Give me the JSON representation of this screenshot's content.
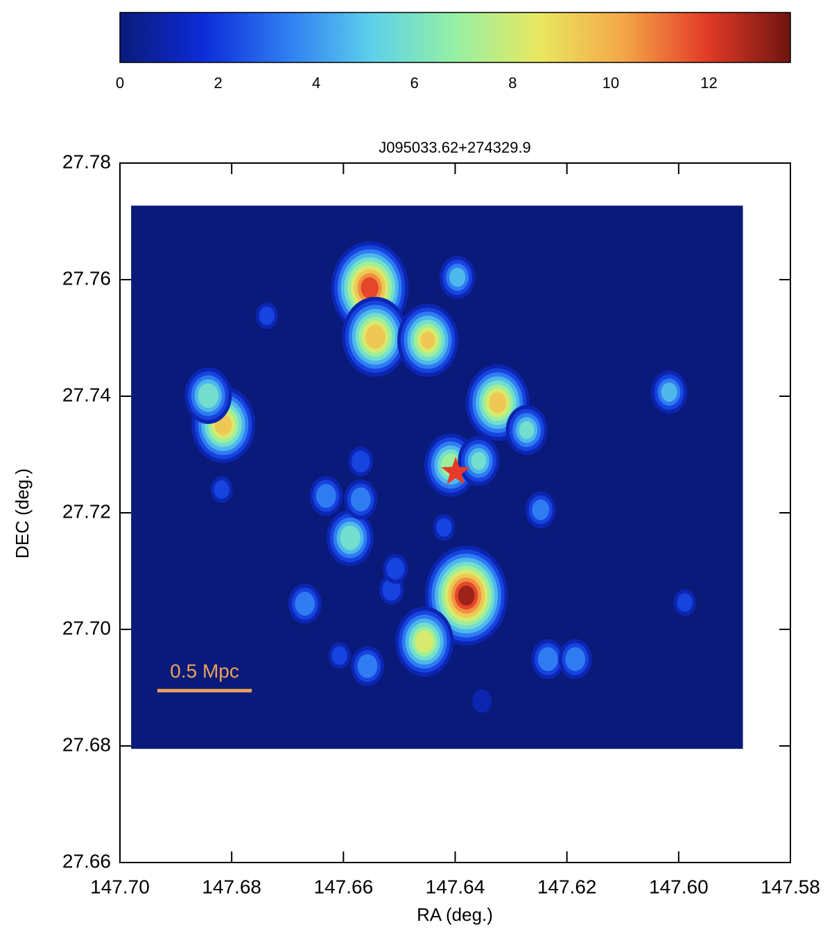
{
  "chart_data": {
    "type": "contour",
    "title": "J095033.62+274329.9",
    "xlabel": "RA (deg.)",
    "ylabel": "DEC (deg.)",
    "x": [
      147.6553,
      147.6543,
      147.6449,
      147.6396,
      147.6815,
      147.6842,
      147.6324,
      147.6272,
      147.6408,
      147.6358,
      147.638,
      147.6588,
      147.6631,
      147.6569,
      147.6455,
      147.6669,
      147.6017,
      147.5989,
      147.6557,
      147.6234,
      147.6185,
      147.6247,
      147.6514,
      147.6737,
      147.6818,
      147.642,
      147.6607,
      147.6352,
      147.6507,
      147.6569
    ],
    "y": [
      27.7586,
      27.7502,
      27.7496,
      27.7604,
      27.7351,
      27.7401,
      27.7389,
      27.7342,
      27.7282,
      27.7289,
      27.7058,
      27.7157,
      27.7229,
      27.7223,
      27.6979,
      27.7044,
      27.7407,
      27.7046,
      27.6937,
      27.6949,
      27.6949,
      27.7205,
      27.7068,
      27.7538,
      27.724,
      27.7175,
      27.6955,
      27.6877,
      27.7104,
      27.7288
    ],
    "values": [
      12.5,
      10.5,
      9.5,
      5,
      10,
      7,
      10,
      6,
      8,
      6,
      13.5,
      7,
      4.5,
      4.5,
      9,
      4.5,
      5,
      2.5,
      4.5,
      4.5,
      4.5,
      4,
      3,
      2.5,
      2.5,
      2.5,
      2.5,
      2,
      3,
      3
    ],
    "xlim": [
      147.7,
      147.58
    ],
    "ylim": [
      27.66,
      27.78
    ],
    "xticks": [
      {
        "value": 147.7,
        "label": "147.70"
      },
      147.68,
      147.66,
      147.64,
      147.62,
      {
        "value": 147.6,
        "label": "147.60"
      },
      147.58
    ],
    "yticks": [
      27.66,
      27.68,
      {
        "value": 27.7,
        "label": "27.70"
      },
      27.72,
      27.74,
      27.76,
      27.78
    ],
    "colormap": [
      "#0a1a7a",
      "#0d2cd8",
      "#2f7df2",
      "#5cd0ea",
      "#95f0a3",
      "#e9e860",
      "#f4a748",
      "#e33b27",
      "#6e1410"
    ],
    "colorbar": {
      "lim": [
        0,
        13.66
      ],
      "ticks": [
        0,
        2,
        4,
        6,
        8,
        10,
        12
      ]
    },
    "map_extent": {
      "ra": [
        147.698,
        147.5885
      ],
      "dec": [
        27.6795,
        27.7727
      ]
    },
    "marker": {
      "ra": 147.6399,
      "dec": 27.727,
      "color": "#e83a2a"
    },
    "scale_bar": {
      "label": "0.5 Mpc",
      "ra": [
        147.6933,
        147.6764
      ],
      "dec": 27.6895,
      "color": "#eba35a"
    }
  }
}
